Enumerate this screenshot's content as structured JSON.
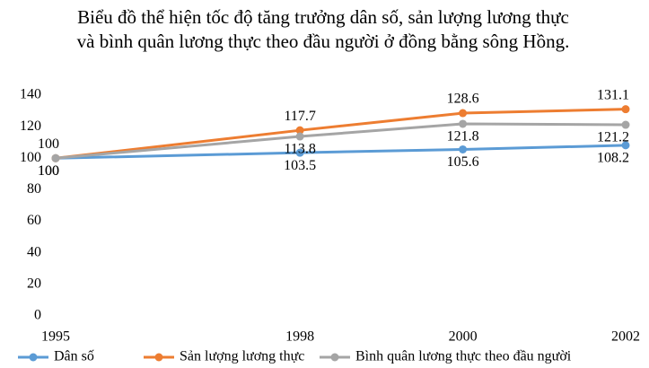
{
  "chart_data": {
    "type": "line",
    "title": "Biểu đồ thể hiện tốc độ tăng trưởng dân số, sản lượng lương thực và bình quân lương thực theo đầu người ở đồng bằng sông Hồng.",
    "x": [
      1995,
      1998,
      2000,
      2002
    ],
    "xlim": [
      1995,
      2002
    ],
    "xticks": [
      1995,
      1998,
      2000,
      2002
    ],
    "ylim": [
      0,
      140
    ],
    "yticks": [
      0,
      20,
      40,
      60,
      80,
      100,
      120,
      140
    ],
    "grid": false,
    "legend": "bottom",
    "series": [
      {
        "name": "Dân số",
        "color": "#5b9bd5",
        "values": [
          100,
          103.5,
          105.6,
          108.2
        ],
        "label_side": "below"
      },
      {
        "name": "Sản lượng lương thực",
        "color": "#ed7d31",
        "values": [
          100,
          117.7,
          128.6,
          131.1
        ],
        "label_side": "above"
      },
      {
        "name": "Bình quân lương thực theo đầu người",
        "color": "#a5a5a5",
        "values": [
          100,
          113.8,
          121.8,
          121.2
        ],
        "label_side": "below"
      }
    ]
  }
}
